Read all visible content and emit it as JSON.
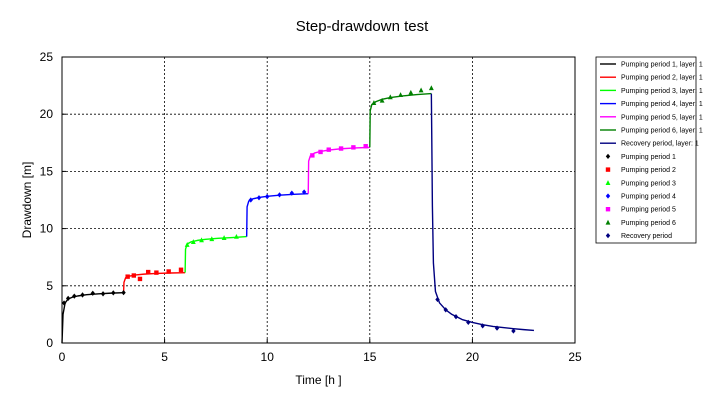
{
  "chart_data": {
    "type": "line",
    "title": "Step-drawdown test",
    "xlabel": "Time [h ]",
    "ylabel": "Drawdown [m]",
    "xlim": [
      0,
      25
    ],
    "ylim": [
      0,
      25
    ],
    "xticks": [
      0,
      5,
      10,
      15,
      20,
      25
    ],
    "yticks": [
      0,
      5,
      10,
      15,
      20,
      25
    ],
    "grid": true,
    "legend_position": "right",
    "series": [
      {
        "name": "Pumping period 1, layer: 1",
        "kind": "line",
        "color": "#000000",
        "x": [
          0.0,
          0.05,
          0.15,
          0.3,
          0.5,
          0.8,
          1.2,
          1.8,
          2.4,
          3.0
        ],
        "y": [
          0.0,
          2.5,
          3.5,
          3.85,
          4.0,
          4.12,
          4.22,
          4.3,
          4.36,
          4.4
        ]
      },
      {
        "name": "Pumping period 2, layer: 1",
        "kind": "line",
        "color": "#ff0000",
        "x": [
          3.0,
          3.02,
          3.1,
          3.3,
          3.6,
          4.0,
          4.6,
          5.3,
          6.0
        ],
        "y": [
          4.4,
          5.3,
          5.7,
          5.85,
          5.95,
          6.02,
          6.08,
          6.12,
          6.15
        ]
      },
      {
        "name": "Pumping period 3, layer: 1",
        "kind": "line",
        "color": "#00ff00",
        "x": [
          6.0,
          6.02,
          6.1,
          6.3,
          6.6,
          7.0,
          7.6,
          8.3,
          9.0
        ],
        "y": [
          6.15,
          8.2,
          8.65,
          8.85,
          8.97,
          9.06,
          9.15,
          9.22,
          9.3
        ]
      },
      {
        "name": "Pumping period 4, layer: 1",
        "kind": "line",
        "color": "#0000ff",
        "x": [
          9.0,
          9.02,
          9.1,
          9.3,
          9.6,
          10.0,
          10.6,
          11.3,
          12.0
        ],
        "y": [
          9.3,
          11.9,
          12.4,
          12.6,
          12.72,
          12.82,
          12.92,
          13.0,
          13.05
        ]
      },
      {
        "name": "Pumping period 5, layer: 1",
        "kind": "line",
        "color": "#ff00ff",
        "x": [
          12.0,
          12.02,
          12.1,
          12.3,
          12.6,
          13.0,
          13.6,
          14.3,
          15.0
        ],
        "y": [
          13.05,
          15.9,
          16.35,
          16.6,
          16.75,
          16.87,
          16.98,
          17.05,
          17.1
        ]
      },
      {
        "name": "Pumping period 6, layer: 1",
        "kind": "line",
        "color": "#008000",
        "x": [
          15.0,
          15.02,
          15.1,
          15.3,
          15.6,
          16.0,
          16.6,
          17.3,
          18.0
        ],
        "y": [
          17.1,
          20.3,
          20.85,
          21.1,
          21.3,
          21.45,
          21.6,
          21.72,
          21.8
        ]
      },
      {
        "name": "Recovery period, layer: 1",
        "kind": "line",
        "color": "#000080",
        "x": [
          18.0,
          18.02,
          18.05,
          18.1,
          18.2,
          18.4,
          18.7,
          19.0,
          19.5,
          20.0,
          20.5,
          21.0,
          21.5,
          22.0,
          22.5,
          23.0
        ],
        "y": [
          21.8,
          18.0,
          12.0,
          7.0,
          4.5,
          3.5,
          2.9,
          2.5,
          2.05,
          1.8,
          1.6,
          1.45,
          1.35,
          1.25,
          1.17,
          1.1
        ]
      },
      {
        "name": "Pumping period 1",
        "kind": "marker",
        "marker": "diamond",
        "color": "#000000",
        "x": [
          0.1,
          0.3,
          0.6,
          1.0,
          1.5,
          2.0,
          2.5,
          3.0
        ],
        "y": [
          3.5,
          3.9,
          4.1,
          4.2,
          4.35,
          4.3,
          4.38,
          4.4
        ]
      },
      {
        "name": "Pumping period 2",
        "kind": "marker",
        "marker": "square",
        "color": "#ff0000",
        "x": [
          3.2,
          3.5,
          3.8,
          4.2,
          4.6,
          5.2,
          5.8
        ],
        "y": [
          5.8,
          5.9,
          5.6,
          6.2,
          6.15,
          6.25,
          6.4
        ]
      },
      {
        "name": "Pumping period 3",
        "kind": "marker",
        "marker": "triangle",
        "color": "#00ff00",
        "x": [
          6.1,
          6.4,
          6.8,
          7.3,
          7.9,
          8.5
        ],
        "y": [
          8.6,
          8.85,
          9.0,
          9.1,
          9.2,
          9.3
        ]
      },
      {
        "name": "Pumping period 4",
        "kind": "marker",
        "marker": "diamond",
        "color": "#0000ff",
        "x": [
          9.2,
          9.6,
          10.0,
          10.6,
          11.2,
          11.8
        ],
        "y": [
          12.5,
          12.7,
          12.8,
          12.95,
          13.1,
          13.2
        ]
      },
      {
        "name": "Pumping period 5",
        "kind": "marker",
        "marker": "square",
        "color": "#ff00ff",
        "x": [
          12.2,
          12.6,
          13.0,
          13.6,
          14.2,
          14.8
        ],
        "y": [
          16.4,
          16.7,
          16.9,
          17.0,
          17.1,
          17.2
        ]
      },
      {
        "name": "Pumping period 6",
        "kind": "marker",
        "marker": "triangle",
        "color": "#008000",
        "x": [
          15.2,
          15.6,
          16.0,
          16.5,
          17.0,
          17.5,
          18.0
        ],
        "y": [
          21.0,
          21.2,
          21.5,
          21.7,
          21.9,
          22.1,
          22.3
        ]
      },
      {
        "name": "Recovery period",
        "kind": "marker",
        "marker": "diamond",
        "color": "#000080",
        "x": [
          18.3,
          18.7,
          19.2,
          19.8,
          20.5,
          21.2,
          22.0
        ],
        "y": [
          3.8,
          2.9,
          2.3,
          1.8,
          1.5,
          1.3,
          1.05
        ]
      }
    ]
  }
}
